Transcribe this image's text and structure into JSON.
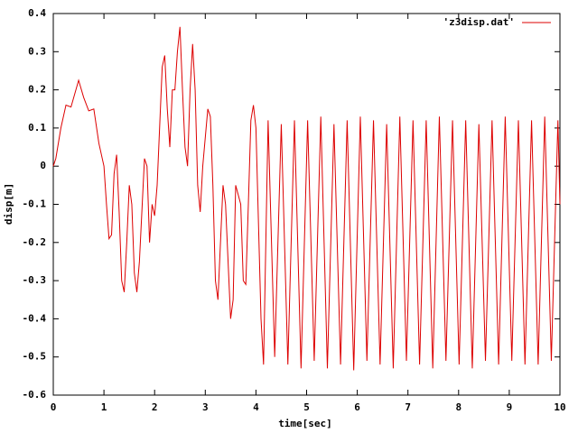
{
  "chart_data": {
    "type": "line",
    "xlabel": "time[sec]",
    "ylabel": "disp[m]",
    "xlim": [
      0,
      10
    ],
    "ylim": [
      -0.6,
      0.4
    ],
    "xticks": [
      0,
      1,
      2,
      3,
      4,
      5,
      6,
      7,
      8,
      9,
      10
    ],
    "yticks": [
      -0.6,
      -0.5,
      -0.4,
      -0.3,
      -0.2,
      -0.1,
      0,
      0.1,
      0.2,
      0.3,
      0.4
    ],
    "grid": false,
    "legend": "top-right",
    "x": [
      0,
      0.05,
      0.15,
      0.25,
      0.35,
      0.5,
      0.6,
      0.7,
      0.8,
      0.9,
      1.0,
      1.05,
      1.1,
      1.15,
      1.2,
      1.25,
      1.3,
      1.35,
      1.4,
      1.45,
      1.5,
      1.55,
      1.6,
      1.65,
      1.7,
      1.8,
      1.85,
      1.9,
      1.95,
      2.0,
      2.05,
      2.15,
      2.2,
      2.25,
      2.3,
      2.35,
      2.4,
      2.45,
      2.5,
      2.55,
      2.6,
      2.65,
      2.7,
      2.75,
      2.8,
      2.85,
      2.9,
      2.95,
      3.05,
      3.1,
      3.15,
      3.2,
      3.25,
      3.3,
      3.35,
      3.4,
      3.5,
      3.55,
      3.6,
      3.7,
      3.75,
      3.8,
      3.85,
      3.9,
      3.95,
      4.0,
      4.1,
      4.15,
      4.24,
      4.37,
      4.5,
      4.63,
      4.76,
      4.89,
      5.02,
      5.15,
      5.28,
      5.41,
      5.54,
      5.67,
      5.8,
      5.93,
      6.06,
      6.19,
      6.32,
      6.45,
      6.58,
      6.71,
      6.84,
      6.97,
      7.1,
      7.23,
      7.36,
      7.49,
      7.62,
      7.75,
      7.88,
      8.01,
      8.14,
      8.27,
      8.4,
      8.53,
      8.66,
      8.79,
      8.92,
      9.05,
      9.18,
      9.31,
      9.44,
      9.57,
      9.7,
      9.83,
      9.96,
      10.0
    ],
    "series": [
      {
        "name": "'z3disp.dat'",
        "color": "#dd0000",
        "values": [
          0,
          0.02,
          0.1,
          0.16,
          0.155,
          0.225,
          0.18,
          0.145,
          0.15,
          0.06,
          0.0,
          -0.1,
          -0.19,
          -0.18,
          -0.02,
          0.03,
          -0.12,
          -0.3,
          -0.33,
          -0.2,
          -0.05,
          -0.1,
          -0.28,
          -0.33,
          -0.25,
          0.02,
          0.0,
          -0.2,
          -0.1,
          -0.13,
          -0.05,
          0.26,
          0.29,
          0.15,
          0.05,
          0.2,
          0.2,
          0.3,
          0.365,
          0.2,
          0.05,
          0.0,
          0.2,
          0.32,
          0.2,
          -0.05,
          -0.12,
          0.0,
          0.15,
          0.13,
          -0.05,
          -0.3,
          -0.35,
          -0.2,
          -0.05,
          -0.1,
          -0.4,
          -0.35,
          -0.05,
          -0.1,
          -0.3,
          -0.31,
          -0.1,
          0.12,
          0.16,
          0.1,
          -0.4,
          -0.52,
          0.12,
          -0.5,
          0.11,
          -0.52,
          0.12,
          -0.53,
          0.12,
          -0.51,
          0.13,
          -0.53,
          0.11,
          -0.52,
          0.12,
          -0.535,
          0.13,
          -0.51,
          0.12,
          -0.52,
          0.11,
          -0.53,
          0.13,
          -0.51,
          0.12,
          -0.52,
          0.12,
          -0.53,
          0.13,
          -0.51,
          0.12,
          -0.52,
          0.12,
          -0.53,
          0.11,
          -0.51,
          0.12,
          -0.52,
          0.13,
          -0.51,
          0.12,
          -0.52,
          0.12,
          -0.52,
          0.13,
          -0.51,
          0.12,
          -0.1
        ]
      }
    ]
  }
}
